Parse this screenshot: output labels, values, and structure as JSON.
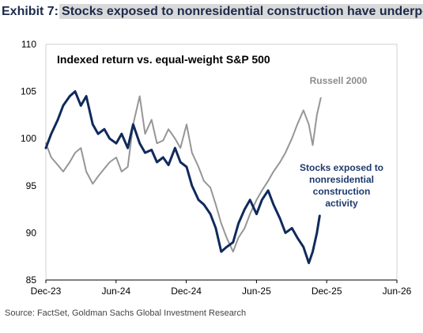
{
  "header": {
    "exhibit": "Exhibit 7:",
    "title": "Stocks exposed to nonresidential construction have underperfo"
  },
  "source": "Source: FactSet, Goldman Sachs Global Investment Research",
  "colors": {
    "russell": "#969696",
    "nonres": "#102a5c",
    "text": "#000000",
    "label_nonres": "#1f3a6d",
    "label_russell": "#8c8c8c",
    "header_bg": "#d9d9d9"
  },
  "chart_data": {
    "type": "line",
    "title": "Indexed return vs. equal-weight S&P 500",
    "xlabel": "",
    "ylabel": "",
    "ylim": [
      85,
      110
    ],
    "yticks": [
      85,
      90,
      95,
      100,
      105,
      110
    ],
    "xlim": [
      "2023-12-01",
      "2026-06-01"
    ],
    "xticks": [
      "Dec-23",
      "Jun-24",
      "Dec-24",
      "Jun-25",
      "Dec-25",
      "Jun-26"
    ],
    "grid": false,
    "series": [
      {
        "name": "Russell 2000",
        "values": [
          [
            "2023-12-01",
            99.5
          ],
          [
            "2023-12-15",
            98.0
          ],
          [
            "2024-01-01",
            97.2
          ],
          [
            "2024-01-15",
            96.5
          ],
          [
            "2024-02-01",
            97.5
          ],
          [
            "2024-02-15",
            98.5
          ],
          [
            "2024-03-01",
            99.0
          ],
          [
            "2024-03-15",
            96.5
          ],
          [
            "2024-04-01",
            95.2
          ],
          [
            "2024-04-15",
            96.0
          ],
          [
            "2024-05-01",
            96.8
          ],
          [
            "2024-05-15",
            97.5
          ],
          [
            "2024-06-01",
            98.0
          ],
          [
            "2024-06-15",
            96.5
          ],
          [
            "2024-07-01",
            97.0
          ],
          [
            "2024-07-15",
            101.5
          ],
          [
            "2024-08-01",
            104.5
          ],
          [
            "2024-08-15",
            100.5
          ],
          [
            "2024-09-01",
            102.0
          ],
          [
            "2024-09-15",
            99.5
          ],
          [
            "2024-10-01",
            99.8
          ],
          [
            "2024-10-15",
            101.0
          ],
          [
            "2024-11-01",
            100.0
          ],
          [
            "2024-11-15",
            99.0
          ],
          [
            "2024-12-01",
            101.5
          ],
          [
            "2024-12-15",
            98.5
          ],
          [
            "2025-01-01",
            97.0
          ],
          [
            "2025-01-15",
            95.5
          ],
          [
            "2025-02-01",
            94.8
          ],
          [
            "2025-02-15",
            93.0
          ],
          [
            "2025-03-01",
            91.0
          ],
          [
            "2025-03-15",
            89.5
          ],
          [
            "2025-04-01",
            88.0
          ],
          [
            "2025-04-15",
            89.5
          ],
          [
            "2025-05-01",
            90.5
          ],
          [
            "2025-05-15",
            92.0
          ],
          [
            "2025-06-01",
            93.5
          ],
          [
            "2025-06-15",
            94.5
          ],
          [
            "2025-07-01",
            95.5
          ],
          [
            "2025-07-15",
            96.5
          ],
          [
            "2025-08-01",
            97.5
          ],
          [
            "2025-08-15",
            98.5
          ],
          [
            "2025-09-01",
            100.0
          ],
          [
            "2025-09-15",
            101.5
          ],
          [
            "2025-10-01",
            103.0
          ],
          [
            "2025-10-15",
            101.5
          ],
          [
            "2025-10-25",
            99.3
          ],
          [
            "2025-11-05",
            102.5
          ],
          [
            "2025-11-15",
            104.3
          ]
        ]
      },
      {
        "name": "Stocks exposed to nonresidential construction activity",
        "values": [
          [
            "2023-12-01",
            99.0
          ],
          [
            "2023-12-15",
            100.5
          ],
          [
            "2024-01-01",
            102.0
          ],
          [
            "2024-01-15",
            103.5
          ],
          [
            "2024-02-01",
            104.5
          ],
          [
            "2024-02-15",
            105.0
          ],
          [
            "2024-03-01",
            103.5
          ],
          [
            "2024-03-15",
            104.5
          ],
          [
            "2024-04-01",
            101.5
          ],
          [
            "2024-04-15",
            100.5
          ],
          [
            "2024-05-01",
            101.0
          ],
          [
            "2024-05-15",
            100.0
          ],
          [
            "2024-06-01",
            99.5
          ],
          [
            "2024-06-15",
            100.5
          ],
          [
            "2024-07-01",
            99.0
          ],
          [
            "2024-07-15",
            101.5
          ],
          [
            "2024-08-01",
            99.5
          ],
          [
            "2024-08-15",
            98.5
          ],
          [
            "2024-09-01",
            98.8
          ],
          [
            "2024-09-15",
            97.5
          ],
          [
            "2024-10-01",
            98.0
          ],
          [
            "2024-10-15",
            97.2
          ],
          [
            "2024-11-01",
            99.0
          ],
          [
            "2024-11-15",
            97.5
          ],
          [
            "2024-12-01",
            97.0
          ],
          [
            "2024-12-15",
            95.0
          ],
          [
            "2025-01-01",
            93.5
          ],
          [
            "2025-01-15",
            93.0
          ],
          [
            "2025-02-01",
            92.0
          ],
          [
            "2025-02-15",
            90.5
          ],
          [
            "2025-03-01",
            88.0
          ],
          [
            "2025-03-15",
            88.5
          ],
          [
            "2025-04-01",
            89.0
          ],
          [
            "2025-04-15",
            91.0
          ],
          [
            "2025-05-01",
            92.5
          ],
          [
            "2025-05-15",
            93.5
          ],
          [
            "2025-06-01",
            92.0
          ],
          [
            "2025-06-15",
            93.5
          ],
          [
            "2025-07-01",
            94.5
          ],
          [
            "2025-07-15",
            93.0
          ],
          [
            "2025-08-01",
            91.5
          ],
          [
            "2025-08-15",
            90.0
          ],
          [
            "2025-09-01",
            90.5
          ],
          [
            "2025-09-15",
            89.5
          ],
          [
            "2025-10-01",
            88.5
          ],
          [
            "2025-10-15",
            86.8
          ],
          [
            "2025-10-25",
            88.0
          ],
          [
            "2025-11-05",
            90.0
          ],
          [
            "2025-11-12",
            91.8
          ]
        ]
      }
    ],
    "annotations": [
      {
        "text": "Russell 2000",
        "series": 0
      },
      {
        "lines": [
          "Stocks exposed to",
          "nonresidential",
          "construction",
          "activity"
        ],
        "series": 1
      }
    ]
  }
}
